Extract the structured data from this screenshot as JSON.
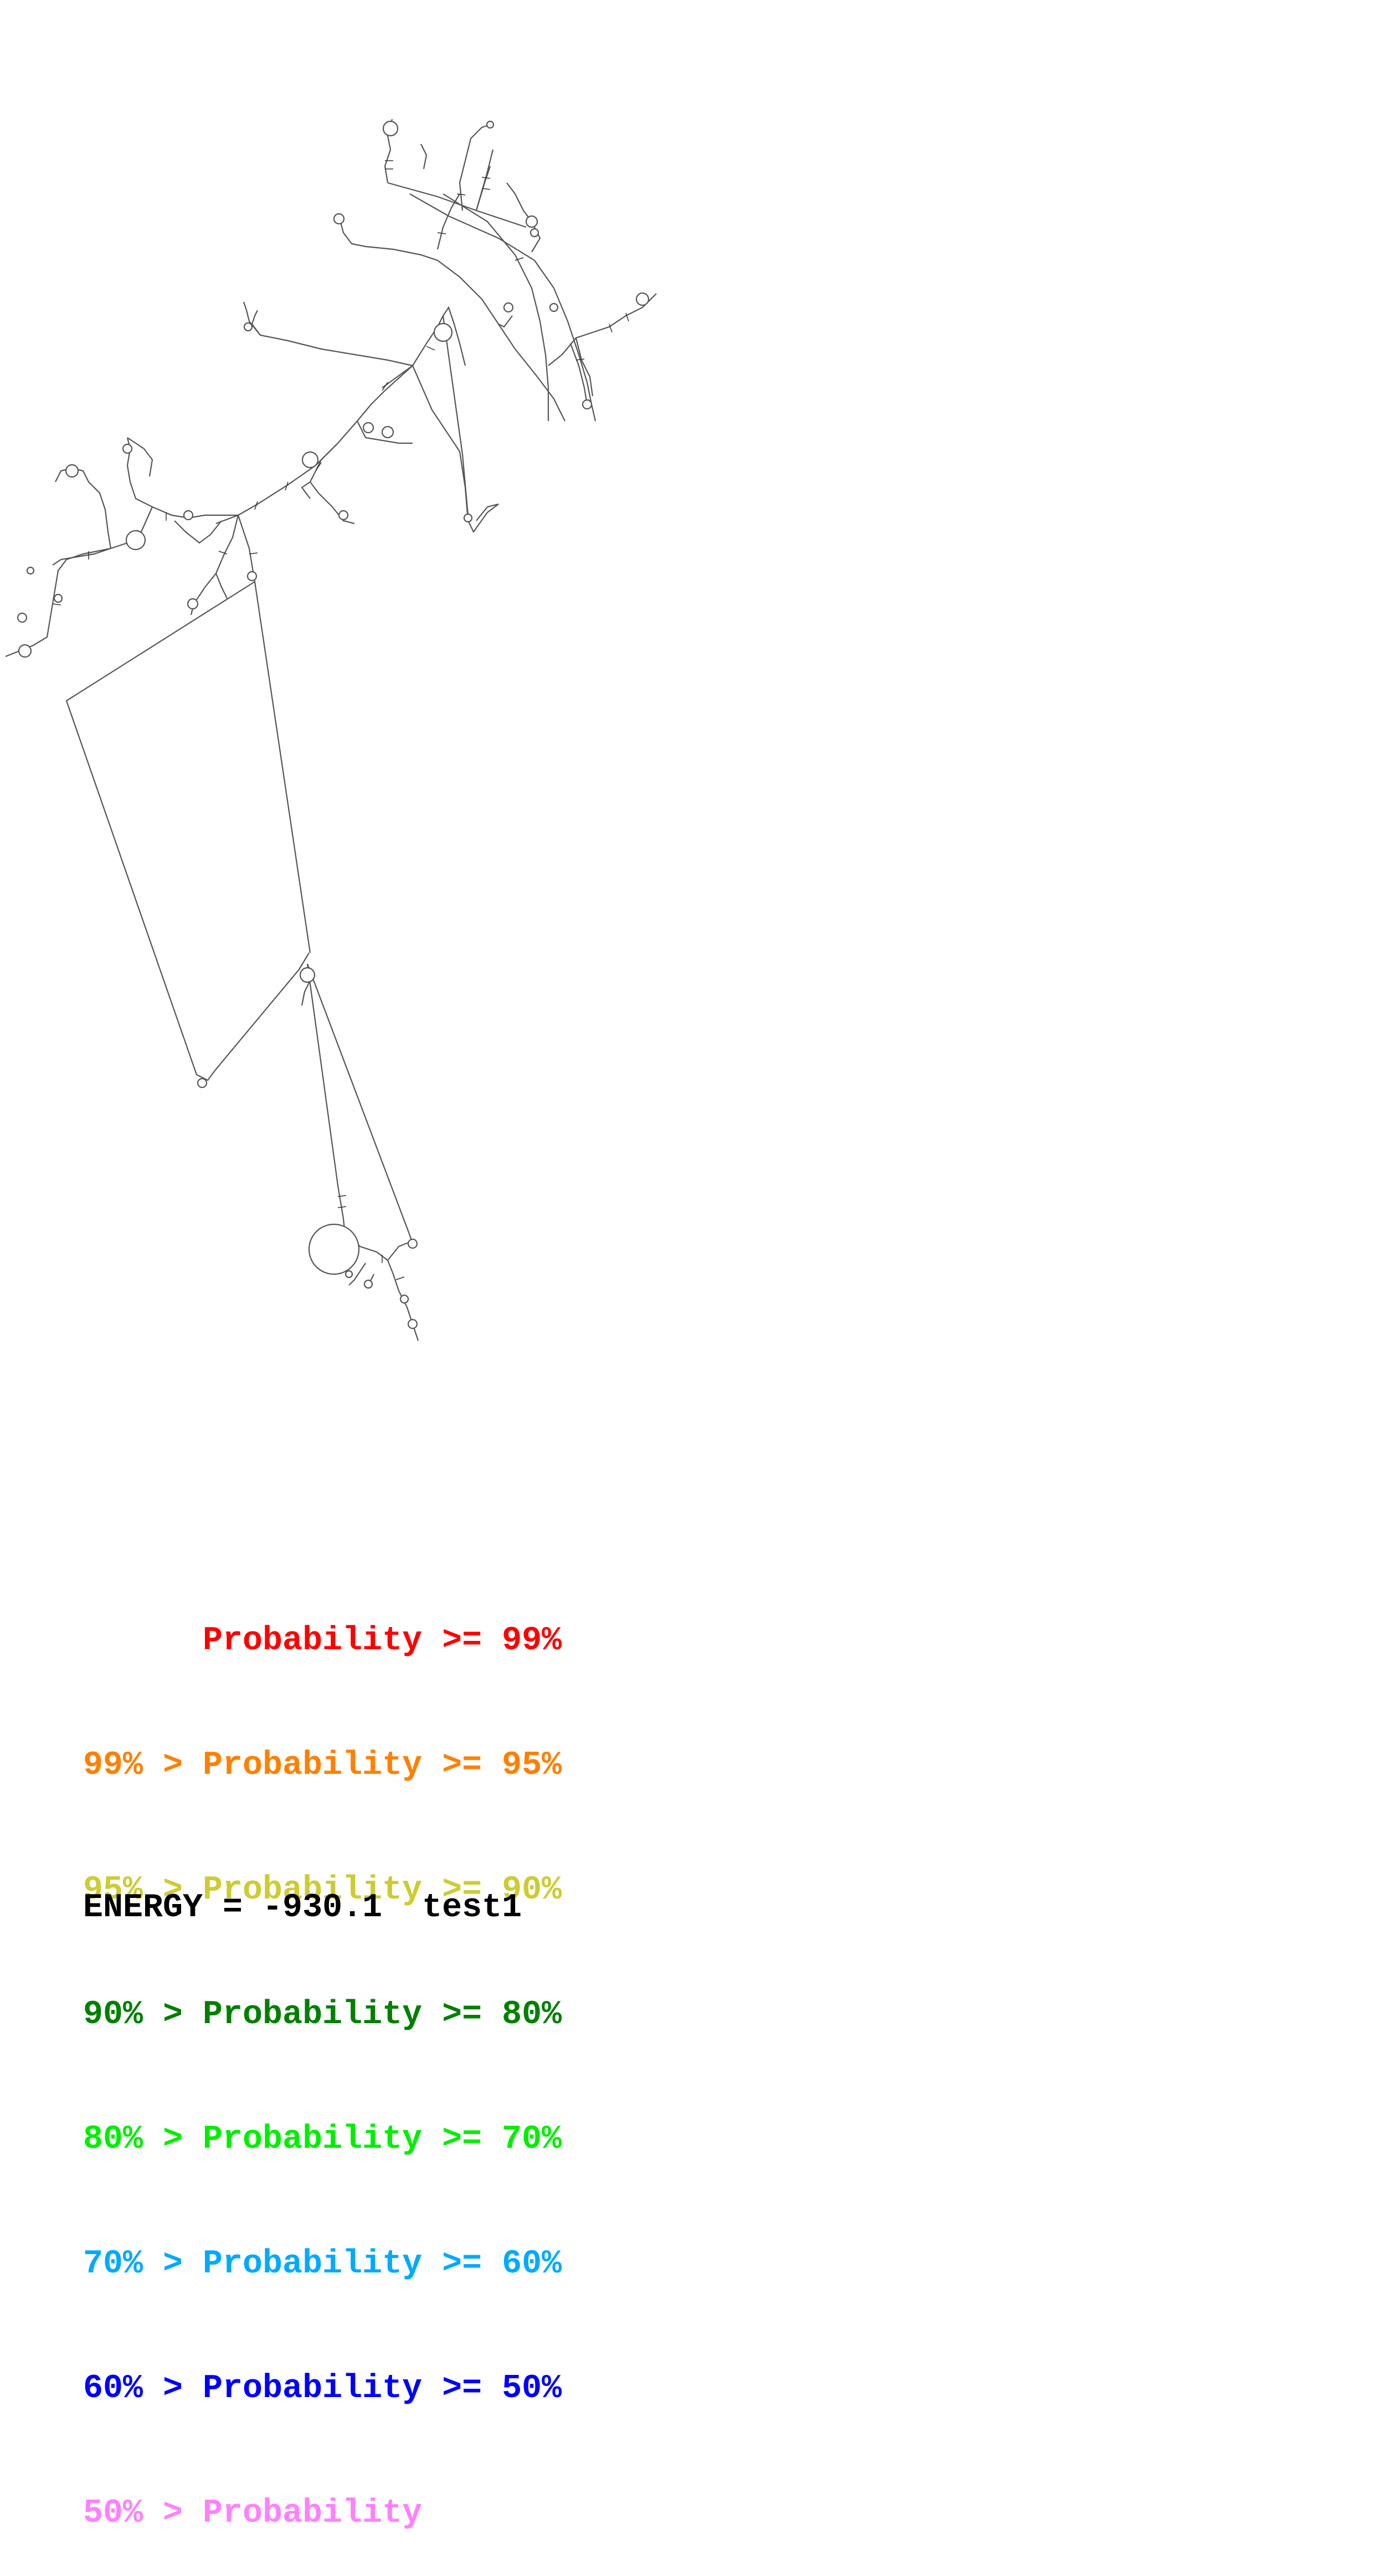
{
  "legend": {
    "rows": [
      {
        "text": "      Probability >= 99%",
        "color": "#ff0000"
      },
      {
        "text": "99% > Probability >= 95%",
        "color": "#ff8000"
      },
      {
        "text": "95% > Probability >= 90%",
        "color": "#cccc33"
      },
      {
        "text": "90% > Probability >= 80%",
        "color": "#008000"
      },
      {
        "text": "80% > Probability >= 70%",
        "color": "#00ee00"
      },
      {
        "text": "70% > Probability >= 60%",
        "color": "#00aaff"
      },
      {
        "text": "60% > Probability >= 50%",
        "color": "#0000ff"
      },
      {
        "text": "50% > Probability",
        "color": "#ff80ff"
      }
    ]
  },
  "energy": {
    "text": "ENERGY = -930.1  test1"
  },
  "structure": {
    "line_color": "#555555",
    "base_color": "#333333"
  }
}
